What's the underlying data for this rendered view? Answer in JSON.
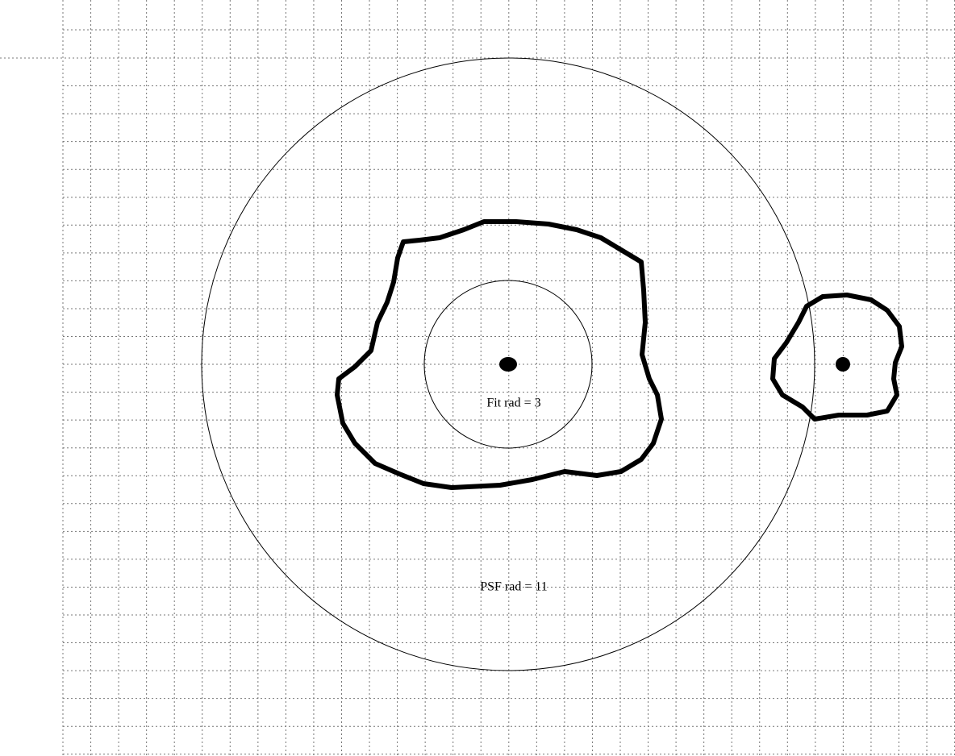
{
  "labels": {
    "fit_radius": "Fit rad = 3",
    "psf_radius": "PSF rad = 11"
  }
}
